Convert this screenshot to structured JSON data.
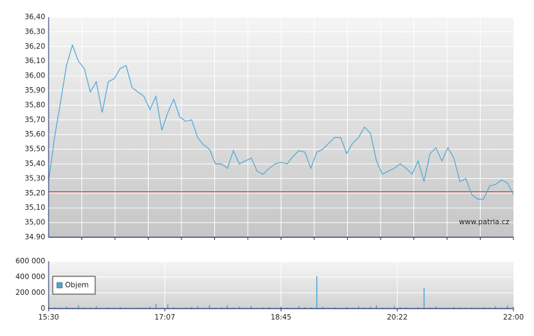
{
  "chart_data": [
    {
      "type": "line",
      "x": [
        930,
        935,
        940,
        945,
        950,
        955,
        960,
        965,
        970,
        975,
        980,
        985,
        990,
        995,
        1000,
        1005,
        1010,
        1015,
        1020,
        1025,
        1030,
        1035,
        1040,
        1045,
        1050,
        1055,
        1060,
        1065,
        1070,
        1075,
        1080,
        1085,
        1090,
        1095,
        1100,
        1105,
        1110,
        1115,
        1120,
        1125,
        1130,
        1135,
        1140,
        1145,
        1150,
        1155,
        1160,
        1165,
        1170,
        1175,
        1180,
        1185,
        1190,
        1195,
        1200,
        1205,
        1210,
        1215,
        1220,
        1225,
        1230,
        1235,
        1240,
        1245,
        1250,
        1255,
        1260,
        1265,
        1270,
        1275,
        1280,
        1285,
        1290,
        1295,
        1300,
        1305,
        1310,
        1315,
        1320
      ],
      "values": [
        35.28,
        35.58,
        35.82,
        36.07,
        36.21,
        36.1,
        36.05,
        35.89,
        35.96,
        35.75,
        35.96,
        35.98,
        36.05,
        36.07,
        35.92,
        35.89,
        35.86,
        35.77,
        35.86,
        35.63,
        35.75,
        35.84,
        35.72,
        35.69,
        35.7,
        35.58,
        35.53,
        35.5,
        35.4,
        35.4,
        35.37,
        35.49,
        35.4,
        35.42,
        35.44,
        35.35,
        35.33,
        35.37,
        35.4,
        35.41,
        35.4,
        35.45,
        35.49,
        35.48,
        35.37,
        35.48,
        35.5,
        35.54,
        35.58,
        35.58,
        35.47,
        35.54,
        35.58,
        35.65,
        35.61,
        35.42,
        35.33,
        35.35,
        35.37,
        35.4,
        35.37,
        35.33,
        35.42,
        35.28,
        35.47,
        35.51,
        35.42,
        35.51,
        35.44,
        35.28,
        35.3,
        35.19,
        35.16,
        35.16,
        35.25,
        35.26,
        35.29,
        35.27,
        35.19
      ],
      "color": "#4aa8d8",
      "xlim": [
        930,
        1320
      ],
      "x_grid_count": 14,
      "ylim": [
        34.9,
        36.4
      ],
      "yticks": [
        {
          "value": 34.9,
          "label": "34.90"
        },
        {
          "value": 35.0,
          "label": "35,00"
        },
        {
          "value": 35.1,
          "label": "35,10"
        },
        {
          "value": 35.2,
          "label": "35,20"
        },
        {
          "value": 35.3,
          "label": "35,30"
        },
        {
          "value": 35.4,
          "label": "35,40"
        },
        {
          "value": 35.5,
          "label": "35,50"
        },
        {
          "value": 35.6,
          "label": "35,60"
        },
        {
          "value": 35.7,
          "label": "35,70"
        },
        {
          "value": 35.8,
          "label": "35,80"
        },
        {
          "value": 35.9,
          "label": "35,90"
        },
        {
          "value": 36.0,
          "label": "36,00"
        },
        {
          "value": 36.1,
          "label": "36,10"
        },
        {
          "value": 36.2,
          "label": "36,20"
        },
        {
          "value": 36.3,
          "label": "36,30"
        },
        {
          "value": 36.4,
          "label": "36,40"
        }
      ],
      "reference_line": 35.21,
      "reference_color": "#d03a3a",
      "watermark": "www.patria.cz",
      "grid": true
    },
    {
      "type": "bar",
      "x": [
        930,
        935,
        940,
        945,
        950,
        955,
        960,
        965,
        970,
        975,
        980,
        985,
        990,
        995,
        1000,
        1005,
        1010,
        1015,
        1020,
        1025,
        1030,
        1035,
        1040,
        1045,
        1050,
        1055,
        1060,
        1065,
        1070,
        1075,
        1080,
        1085,
        1090,
        1095,
        1100,
        1105,
        1110,
        1115,
        1120,
        1125,
        1130,
        1135,
        1140,
        1145,
        1150,
        1155,
        1160,
        1165,
        1170,
        1175,
        1180,
        1185,
        1190,
        1195,
        1200,
        1205,
        1210,
        1215,
        1220,
        1225,
        1230,
        1235,
        1240,
        1245,
        1250,
        1255,
        1260,
        1265,
        1270,
        1275,
        1280,
        1285,
        1290,
        1295,
        1300,
        1305,
        1310,
        1315,
        1320
      ],
      "series": [
        {
          "name": "Objem",
          "color": "#4aa8d8",
          "values": [
            20000,
            15000,
            10000,
            25000,
            8000,
            45000,
            12000,
            10000,
            30000,
            6000,
            15000,
            8000,
            20000,
            10000,
            5000,
            12000,
            8000,
            25000,
            60000,
            10000,
            55000,
            15000,
            8000,
            12000,
            20000,
            30000,
            10000,
            45000,
            8000,
            15000,
            40000,
            12000,
            25000,
            10000,
            35000,
            8000,
            15000,
            20000,
            10000,
            25000,
            12000,
            8000,
            30000,
            20000,
            15000,
            410000,
            25000,
            10000,
            15000,
            8000,
            20000,
            10000,
            30000,
            15000,
            25000,
            40000,
            12000,
            10000,
            30000,
            20000,
            15000,
            8000,
            20000,
            260000,
            15000,
            25000,
            10000,
            8000,
            20000,
            12000,
            10000,
            15000,
            8000,
            20000,
            12000,
            30000,
            10000,
            40000,
            25000
          ]
        }
      ],
      "xlim": [
        930,
        1320
      ],
      "xticks": [
        {
          "value": 930,
          "label": "15:30"
        },
        {
          "value": 1027.5,
          "label": "17:07"
        },
        {
          "value": 1125,
          "label": "18:45"
        },
        {
          "value": 1222.5,
          "label": "20:22"
        },
        {
          "value": 1320,
          "label": "22:00"
        }
      ],
      "ylim": [
        0,
        600000
      ],
      "yticks": [
        0,
        {
          "value": 200000,
          "label": "200 000"
        },
        {
          "value": 400000,
          "label": "400 000"
        },
        {
          "value": 600000,
          "label": "600 000"
        }
      ],
      "legend": "upper left",
      "grid": true
    }
  ]
}
